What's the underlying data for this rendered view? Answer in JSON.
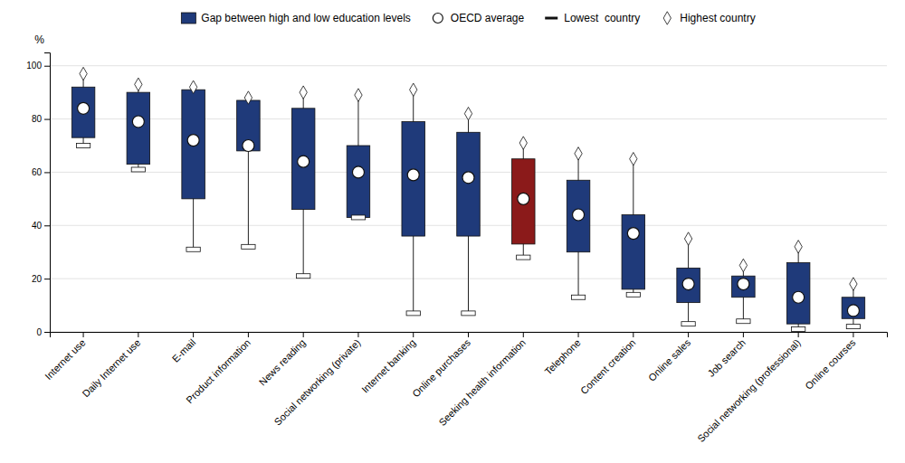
{
  "chart_data": {
    "type": "range",
    "categories": [
      "Internet use",
      "Daily Internet use",
      "E-mail",
      "Product information",
      "News reading",
      "Social networking (private)",
      "Internet banking",
      "Online purchases",
      "Seeking health information",
      "Telephone",
      "Content creation",
      "Online sales",
      "Job search",
      "Social networking (professional)",
      "Online courses"
    ],
    "series": [
      {
        "name": "Gap between high and low education levels",
        "type": "bar",
        "color": "#1f3a7a",
        "colors": [
          "#1f3a7a",
          "#1f3a7a",
          "#1f3a7a",
          "#1f3a7a",
          "#1f3a7a",
          "#1f3a7a",
          "#1f3a7a",
          "#1f3a7a",
          "#8b1a1a",
          "#1f3a7a",
          "#1f3a7a",
          "#1f3a7a",
          "#1f3a7a",
          "#1f3a7a",
          "#1f3a7a"
        ],
        "low": [
          73,
          63,
          50,
          68,
          46,
          43,
          36,
          36,
          33,
          30,
          16,
          11,
          13,
          3,
          5
        ],
        "high": [
          92,
          90,
          91,
          87,
          84,
          70,
          79,
          75,
          65,
          57,
          44,
          24,
          21,
          26,
          13
        ]
      },
      {
        "name": "OECD average",
        "type": "scatter",
        "marker": "circle",
        "values": [
          84,
          79,
          72,
          70,
          64,
          60,
          59,
          58,
          50,
          44,
          37,
          18,
          18,
          13,
          8
        ]
      },
      {
        "name": "Lowest  country",
        "type": "scatter",
        "marker": "dash",
        "values": [
          70,
          61,
          31,
          32,
          21,
          43,
          7,
          7,
          28,
          13,
          14,
          3,
          4,
          1,
          2
        ]
      },
      {
        "name": "Highest country",
        "type": "scatter",
        "marker": "diamond",
        "values": [
          97,
          93,
          92,
          88,
          90,
          89,
          91,
          82,
          71,
          67,
          65,
          35,
          25,
          32,
          18
        ]
      }
    ],
    "ylabel": "%",
    "ylim": [
      0,
      105
    ],
    "yticks": [
      0,
      20,
      40,
      60,
      80,
      100
    ],
    "grid": true
  }
}
